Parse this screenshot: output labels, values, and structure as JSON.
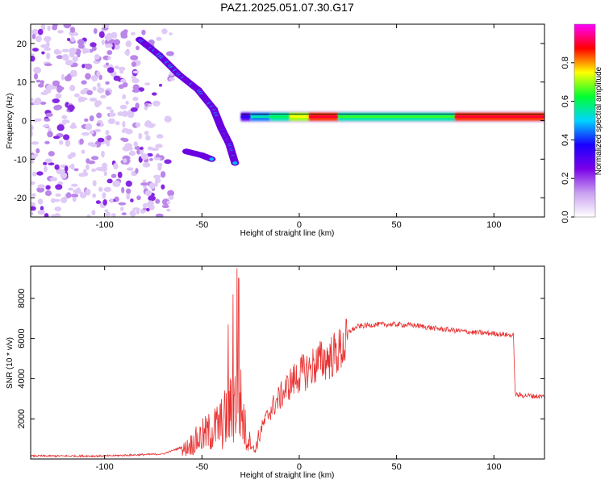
{
  "title": "PAZ1.2025.051.07.30.G17",
  "chart_data": [
    {
      "type": "heatmap",
      "xlabel": "Height of straight line (km)",
      "ylabel": "Frequency (Hz)",
      "xlim": [
        -138,
        126
      ],
      "ylim": [
        -25,
        25
      ],
      "xticks": [
        -100,
        -50,
        0,
        50,
        100
      ],
      "xtick_labels": [
        "-100",
        "-50",
        "0",
        "50",
        "100"
      ],
      "yticks": [
        -20,
        -10,
        0,
        10,
        20
      ],
      "ytick_labels": [
        "-20",
        "-10",
        "0",
        "10",
        "20"
      ],
      "colorbar": {
        "label": "Normalized spectral amplitude",
        "range": [
          0,
          1
        ],
        "ticks": [
          0.0,
          0.2,
          0.4,
          0.6,
          0.8
        ],
        "tick_labels": [
          "0.0",
          "0.2",
          "0.4",
          "0.6",
          "0.8"
        ],
        "colormap": [
          "#ffffff",
          "#c9a0f0",
          "#7a00e8",
          "#1a00ff",
          "#00d5ff",
          "#00ff30",
          "#ffff00",
          "#ff0000",
          "#ff00ff"
        ]
      },
      "main_ridge": [
        [
          -82,
          21
        ],
        [
          -72,
          17
        ],
        [
          -62,
          12
        ],
        [
          -52,
          8
        ],
        [
          -44,
          3
        ],
        [
          -40,
          -2
        ],
        [
          -36,
          -6
        ],
        [
          -33,
          -11
        ]
      ],
      "lower_branch": [
        [
          -58,
          -8
        ],
        [
          -50,
          -9
        ],
        [
          -45,
          -10
        ]
      ],
      "carrier": {
        "frequency_hz": 1,
        "segments": [
          [
            -30,
            -25,
            0.3,
            0.35
          ],
          [
            -25,
            -15,
            0.45,
            0.55
          ],
          [
            -15,
            -5,
            0.55,
            0.6
          ],
          [
            -5,
            5,
            0.7,
            0.75
          ],
          [
            5,
            20,
            0.85,
            0.9
          ],
          [
            20,
            80,
            0.55,
            0.65
          ],
          [
            80,
            126,
            0.85,
            0.9
          ]
        ]
      }
    },
    {
      "type": "line",
      "xlabel": "Height of straight line (km)",
      "ylabel": "SNR (10 * v/v)",
      "xlim": [
        -138,
        126
      ],
      "ylim": [
        0,
        9600
      ],
      "xticks": [
        -100,
        -50,
        0,
        50,
        100
      ],
      "xtick_labels": [
        "-100",
        "-50",
        "0",
        "50",
        "100"
      ],
      "yticks": [
        2000,
        4000,
        6000,
        8000
      ],
      "ytick_labels": [
        "2000",
        "4000",
        "6000",
        "8000"
      ],
      "series_color": "#e83030",
      "envelope": [
        [
          -138,
          150
        ],
        [
          -100,
          150
        ],
        [
          -70,
          250
        ],
        [
          -60,
          600
        ],
        [
          -55,
          1100
        ],
        [
          -50,
          1600
        ],
        [
          -45,
          2000
        ],
        [
          -40,
          2500
        ],
        [
          -36,
          3200
        ],
        [
          -33,
          4000
        ],
        [
          -31,
          4500
        ],
        [
          -29,
          3000
        ],
        [
          -27,
          1500
        ],
        [
          -23,
          400
        ],
        [
          -20,
          1500
        ],
        [
          -15,
          2600
        ],
        [
          -10,
          3300
        ],
        [
          -5,
          4000
        ],
        [
          0,
          4500
        ],
        [
          5,
          4800
        ],
        [
          10,
          5200
        ],
        [
          15,
          5400
        ],
        [
          20,
          5700
        ],
        [
          25,
          6300
        ],
        [
          30,
          6600
        ],
        [
          40,
          6700
        ],
        [
          50,
          6700
        ],
        [
          60,
          6650
        ],
        [
          70,
          6500
        ],
        [
          80,
          6400
        ],
        [
          90,
          6300
        ],
        [
          100,
          6250
        ],
        [
          110,
          6150
        ],
        [
          111,
          3200
        ],
        [
          126,
          3100
        ]
      ],
      "peaks": [
        [
          -32,
          9500
        ],
        [
          -31.2,
          9000
        ],
        [
          -34,
          8200
        ],
        [
          -36.5,
          6700
        ]
      ]
    }
  ]
}
